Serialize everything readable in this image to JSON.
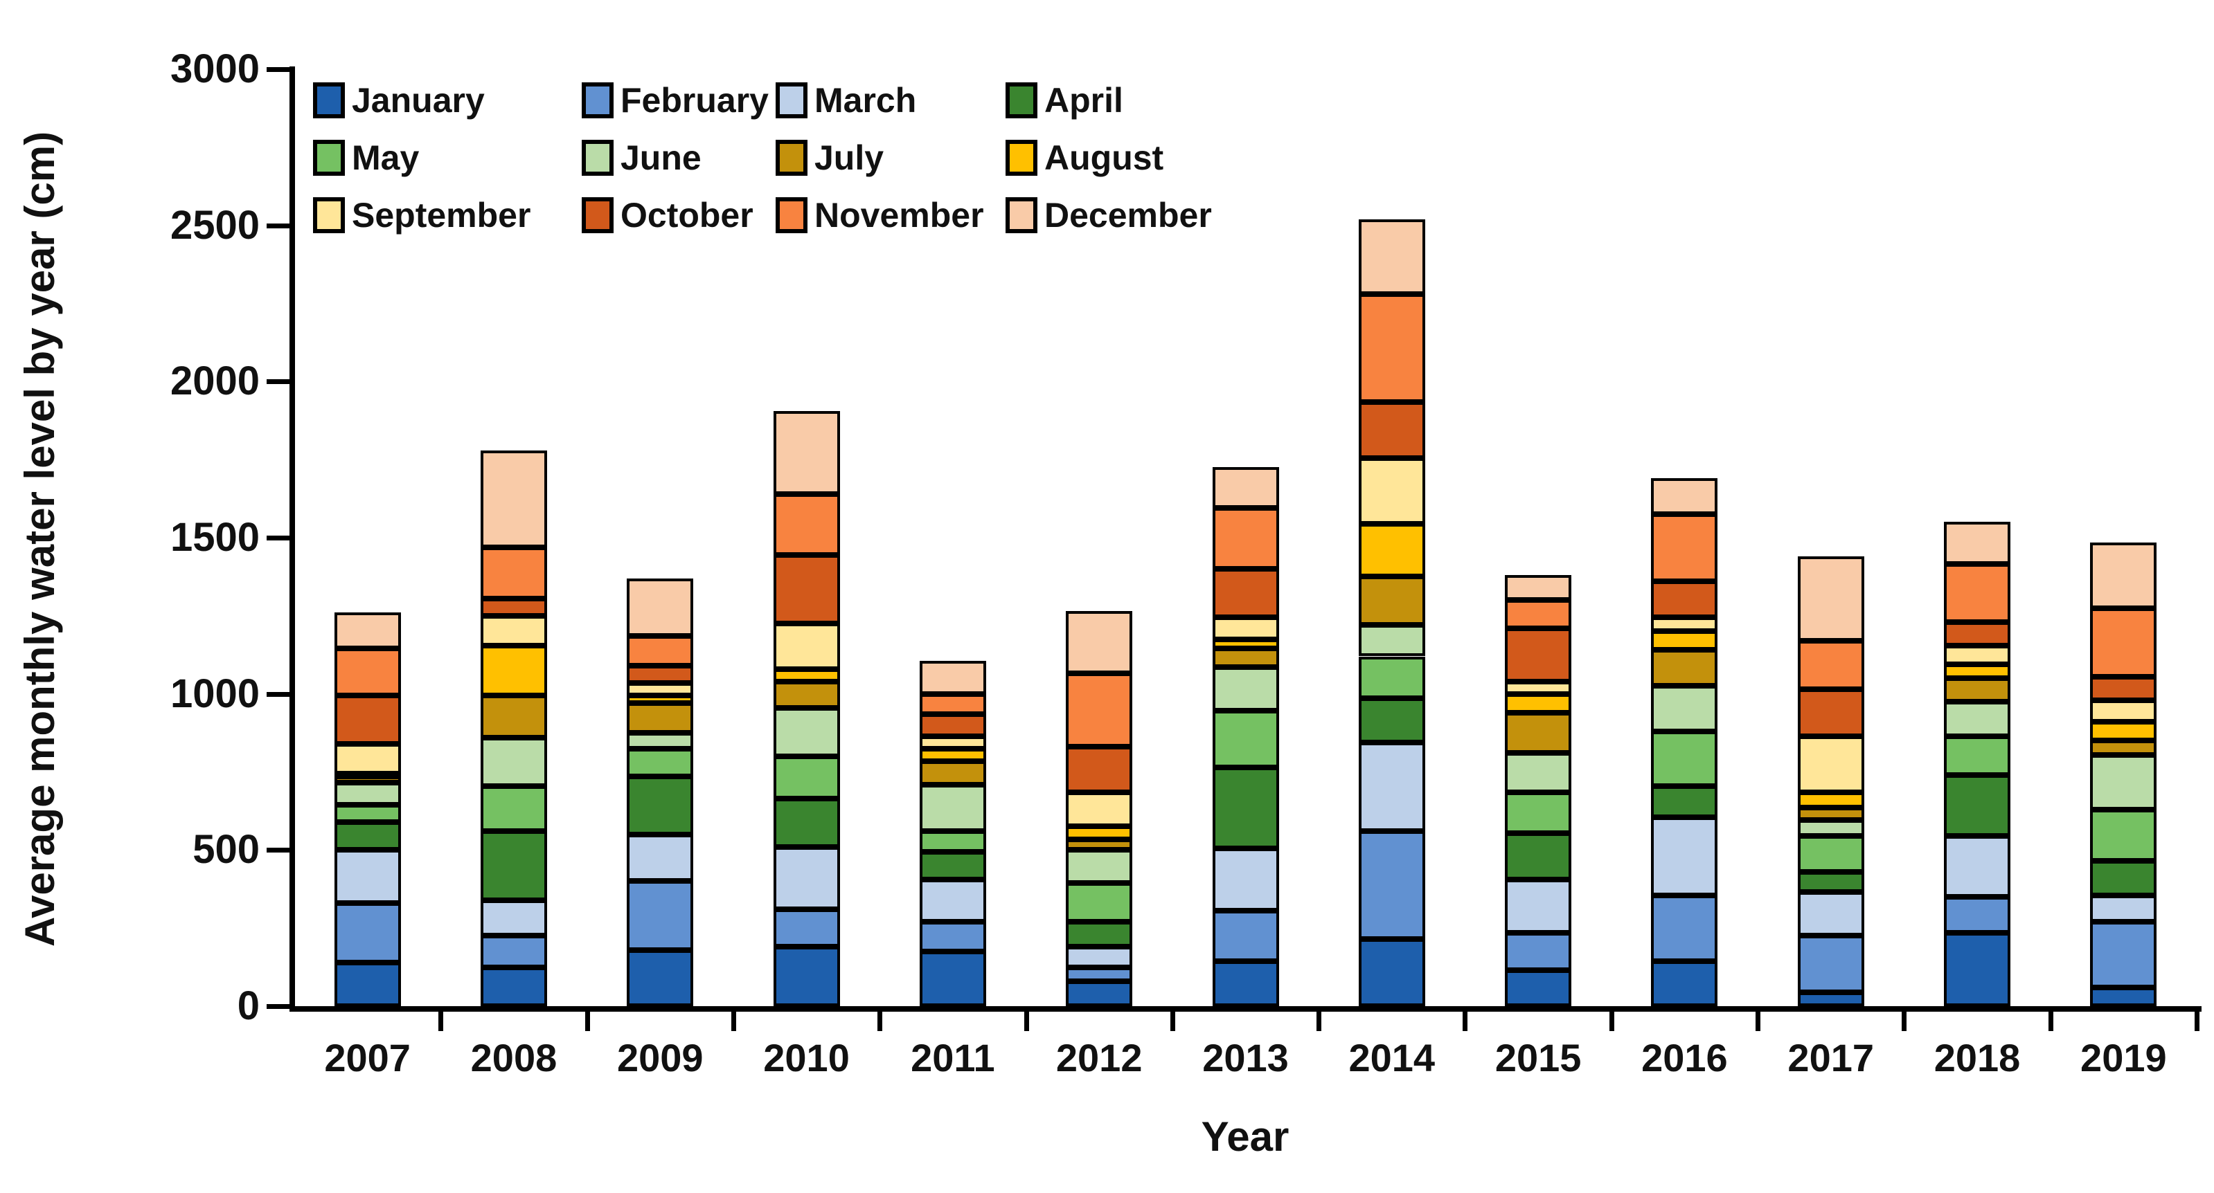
{
  "chart_data": {
    "type": "bar",
    "stacked": true,
    "title": "",
    "xlabel": "Year",
    "ylabel": "Average monthly water level by year (cm)",
    "ylim": [
      0,
      3000
    ],
    "yticks": [
      0,
      500,
      1000,
      1500,
      2000,
      2500,
      3000
    ],
    "grid": false,
    "legend_position": "top-left",
    "legend_columns": 4,
    "categories": [
      "2007",
      "2008",
      "2009",
      "2010",
      "2011",
      "2012",
      "2013",
      "2014",
      "2015",
      "2016",
      "2017",
      "2018",
      "2019"
    ],
    "series": [
      {
        "name": "January",
        "color": "#1E5FAC",
        "values": [
          140,
          125,
          180,
          190,
          175,
          80,
          145,
          215,
          115,
          145,
          45,
          235,
          60
        ]
      },
      {
        "name": "February",
        "color": "#6191D1",
        "values": [
          190,
          100,
          220,
          120,
          95,
          45,
          160,
          345,
          120,
          210,
          180,
          115,
          210
        ]
      },
      {
        "name": "March",
        "color": "#BDD0E9",
        "values": [
          170,
          115,
          150,
          200,
          135,
          65,
          200,
          285,
          170,
          250,
          140,
          195,
          85
        ]
      },
      {
        "name": "April",
        "color": "#3A852F",
        "values": [
          90,
          220,
          185,
          155,
          90,
          80,
          260,
          140,
          150,
          100,
          65,
          195,
          110
        ]
      },
      {
        "name": "May",
        "color": "#75C162",
        "values": [
          55,
          145,
          90,
          135,
          65,
          125,
          180,
          135,
          130,
          175,
          115,
          125,
          165
        ]
      },
      {
        "name": "June",
        "color": "#BADCA8",
        "values": [
          70,
          155,
          50,
          155,
          150,
          105,
          140,
          100,
          125,
          145,
          50,
          110,
          175
        ]
      },
      {
        "name": "July",
        "color": "#C3910C",
        "values": [
          20,
          135,
          95,
          85,
          75,
          35,
          60,
          155,
          130,
          115,
          40,
          75,
          45
        ]
      },
      {
        "name": "August",
        "color": "#FFC000",
        "values": [
          10,
          160,
          25,
          40,
          40,
          40,
          30,
          170,
          60,
          60,
          50,
          45,
          60
        ]
      },
      {
        "name": "September",
        "color": "#FFE699",
        "values": [
          95,
          95,
          40,
          145,
          40,
          110,
          70,
          210,
          40,
          45,
          180,
          60,
          70
        ]
      },
      {
        "name": "October",
        "color": "#D2591B",
        "values": [
          155,
          55,
          55,
          220,
          70,
          145,
          155,
          180,
          170,
          115,
          150,
          75,
          75
        ]
      },
      {
        "name": "November",
        "color": "#F88340",
        "values": [
          150,
          165,
          95,
          195,
          65,
          235,
          195,
          345,
          90,
          215,
          155,
          185,
          220
        ]
      },
      {
        "name": "December",
        "color": "#F9CBA8",
        "values": [
          115,
          310,
          185,
          265,
          105,
          200,
          130,
          240,
          80,
          115,
          270,
          135,
          210
        ]
      }
    ],
    "totals": [
      1260,
      1780,
      1370,
      1905,
      1105,
      1265,
      1725,
      2520,
      1380,
      1690,
      1440,
      1550,
      1485
    ]
  },
  "colors": {
    "axis": "#000000",
    "segment_border": "#000000",
    "background": "#FFFFFF"
  }
}
